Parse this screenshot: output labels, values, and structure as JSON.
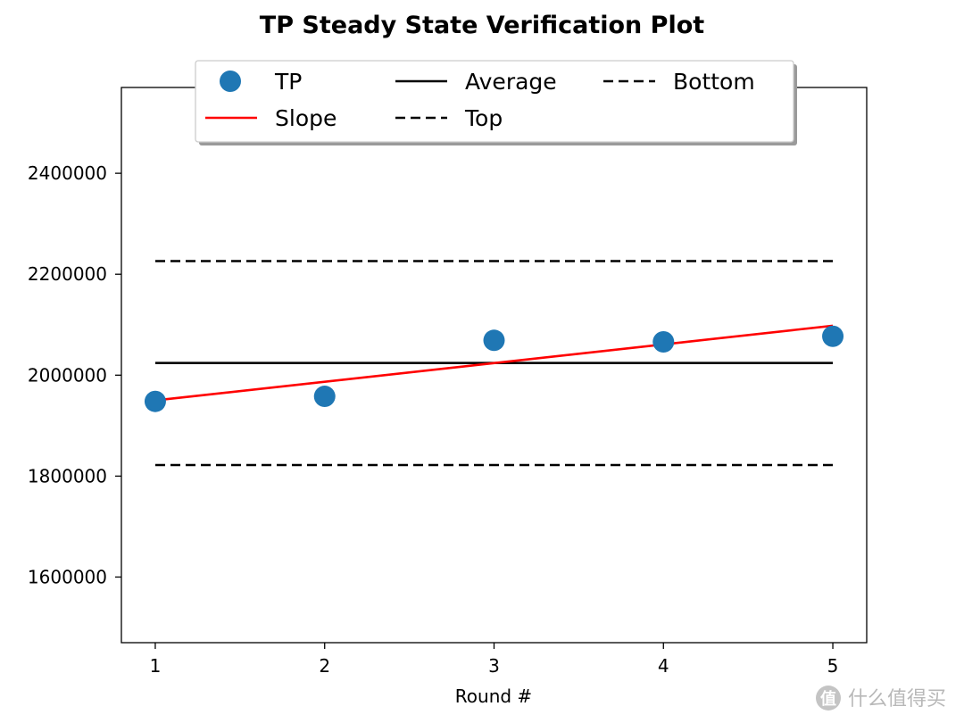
{
  "chart_data": {
    "type": "scatter",
    "title": "TP Steady State Verification Plot",
    "xlabel": "Round #",
    "ylabel": "",
    "xlim": [
      0.8,
      5.2
    ],
    "ylim": [
      1470000,
      2570000
    ],
    "x_ticks": [
      1,
      2,
      3,
      4,
      5
    ],
    "y_ticks": [
      1600000,
      1800000,
      2000000,
      2200000,
      2400000
    ],
    "grid": false,
    "legend_position": "top-center",
    "series": [
      {
        "name": "TP",
        "kind": "scatter",
        "color": "#1f77b4",
        "x": [
          1,
          2,
          3,
          4,
          5
        ],
        "y": [
          1948000,
          1958000,
          2069000,
          2066000,
          2077000
        ]
      },
      {
        "name": "Slope",
        "kind": "line",
        "color": "#ff0000",
        "dash": "solid",
        "x": [
          1,
          5
        ],
        "y": [
          1950000,
          2098000
        ]
      },
      {
        "name": "Average",
        "kind": "line",
        "color": "#000000",
        "dash": "solid",
        "x": [
          1,
          5
        ],
        "y": [
          2024000,
          2024000
        ]
      },
      {
        "name": "Top",
        "kind": "line",
        "color": "#000000",
        "dash": "dashed",
        "x": [
          1,
          5
        ],
        "y": [
          2226000,
          2226000
        ]
      },
      {
        "name": "Bottom",
        "kind": "line",
        "color": "#000000",
        "dash": "dashed",
        "x": [
          1,
          5
        ],
        "y": [
          1822000,
          1822000
        ]
      }
    ],
    "legend_order": [
      "TP",
      "Average",
      "Bottom",
      "Slope",
      "Top"
    ]
  },
  "watermark": {
    "text": "什么值得买",
    "icon": "zhi-logo-icon"
  }
}
